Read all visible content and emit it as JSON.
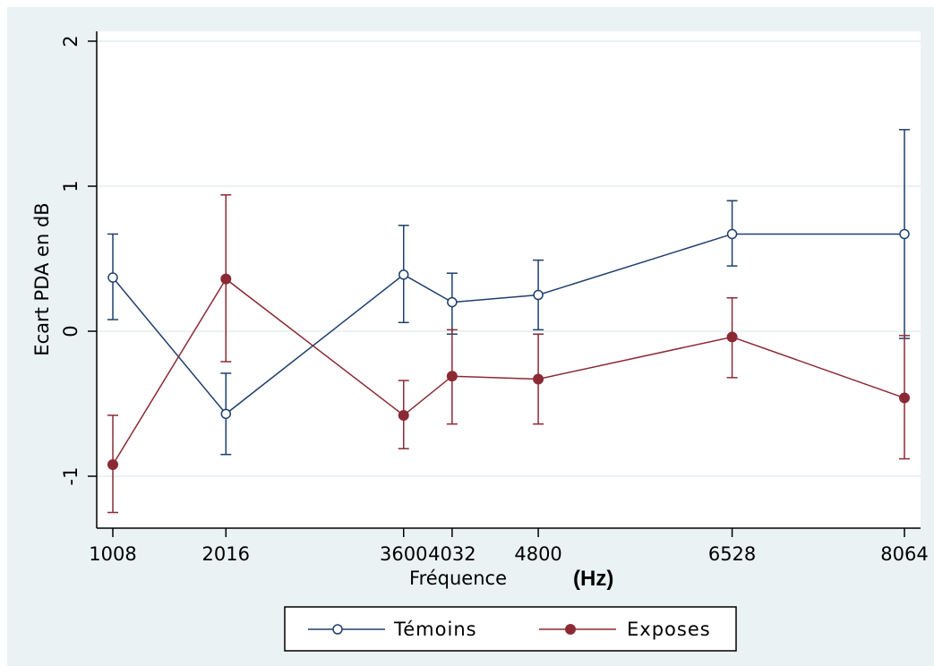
{
  "chart_data": {
    "type": "line",
    "xlabel": "Fréquence",
    "xlabel_suffix": "(Hz)",
    "ylabel": "Ecart PDA en dB",
    "x": [
      1008,
      2016,
      3600,
      4032,
      4800,
      6528,
      8064
    ],
    "x_tick_labels": [
      "1008",
      "2016",
      "3600",
      "4032",
      "4800",
      "6528",
      "8064"
    ],
    "y_ticks": [
      -1,
      0,
      1,
      2
    ],
    "y_tick_labels": [
      "-1",
      "0",
      "1",
      "2"
    ],
    "xlim": [
      1008,
      8064
    ],
    "ylim": [
      -1.35,
      2.1
    ],
    "grid": "horizontal",
    "legend_position": "bottom",
    "series": [
      {
        "name": "Témoins",
        "color": "#1f3f6e",
        "marker": "hollow-circle",
        "values": [
          0.37,
          -0.57,
          0.39,
          0.2,
          0.25,
          0.67,
          0.67
        ],
        "ci_low": [
          0.08,
          -0.85,
          0.06,
          -0.02,
          0.01,
          0.45,
          -0.05
        ],
        "ci_high": [
          0.67,
          -0.29,
          0.73,
          0.4,
          0.49,
          0.9,
          1.39
        ]
      },
      {
        "name": "Exposes",
        "color": "#8b2a34",
        "marker": "filled-circle",
        "values": [
          -0.92,
          0.36,
          -0.58,
          -0.31,
          -0.33,
          -0.04,
          -0.46
        ],
        "ci_low": [
          -1.25,
          -0.21,
          -0.81,
          -0.64,
          -0.64,
          -0.32,
          -0.88
        ],
        "ci_high": [
          -0.58,
          0.94,
          -0.34,
          0.01,
          -0.02,
          0.23,
          -0.03
        ]
      }
    ]
  }
}
